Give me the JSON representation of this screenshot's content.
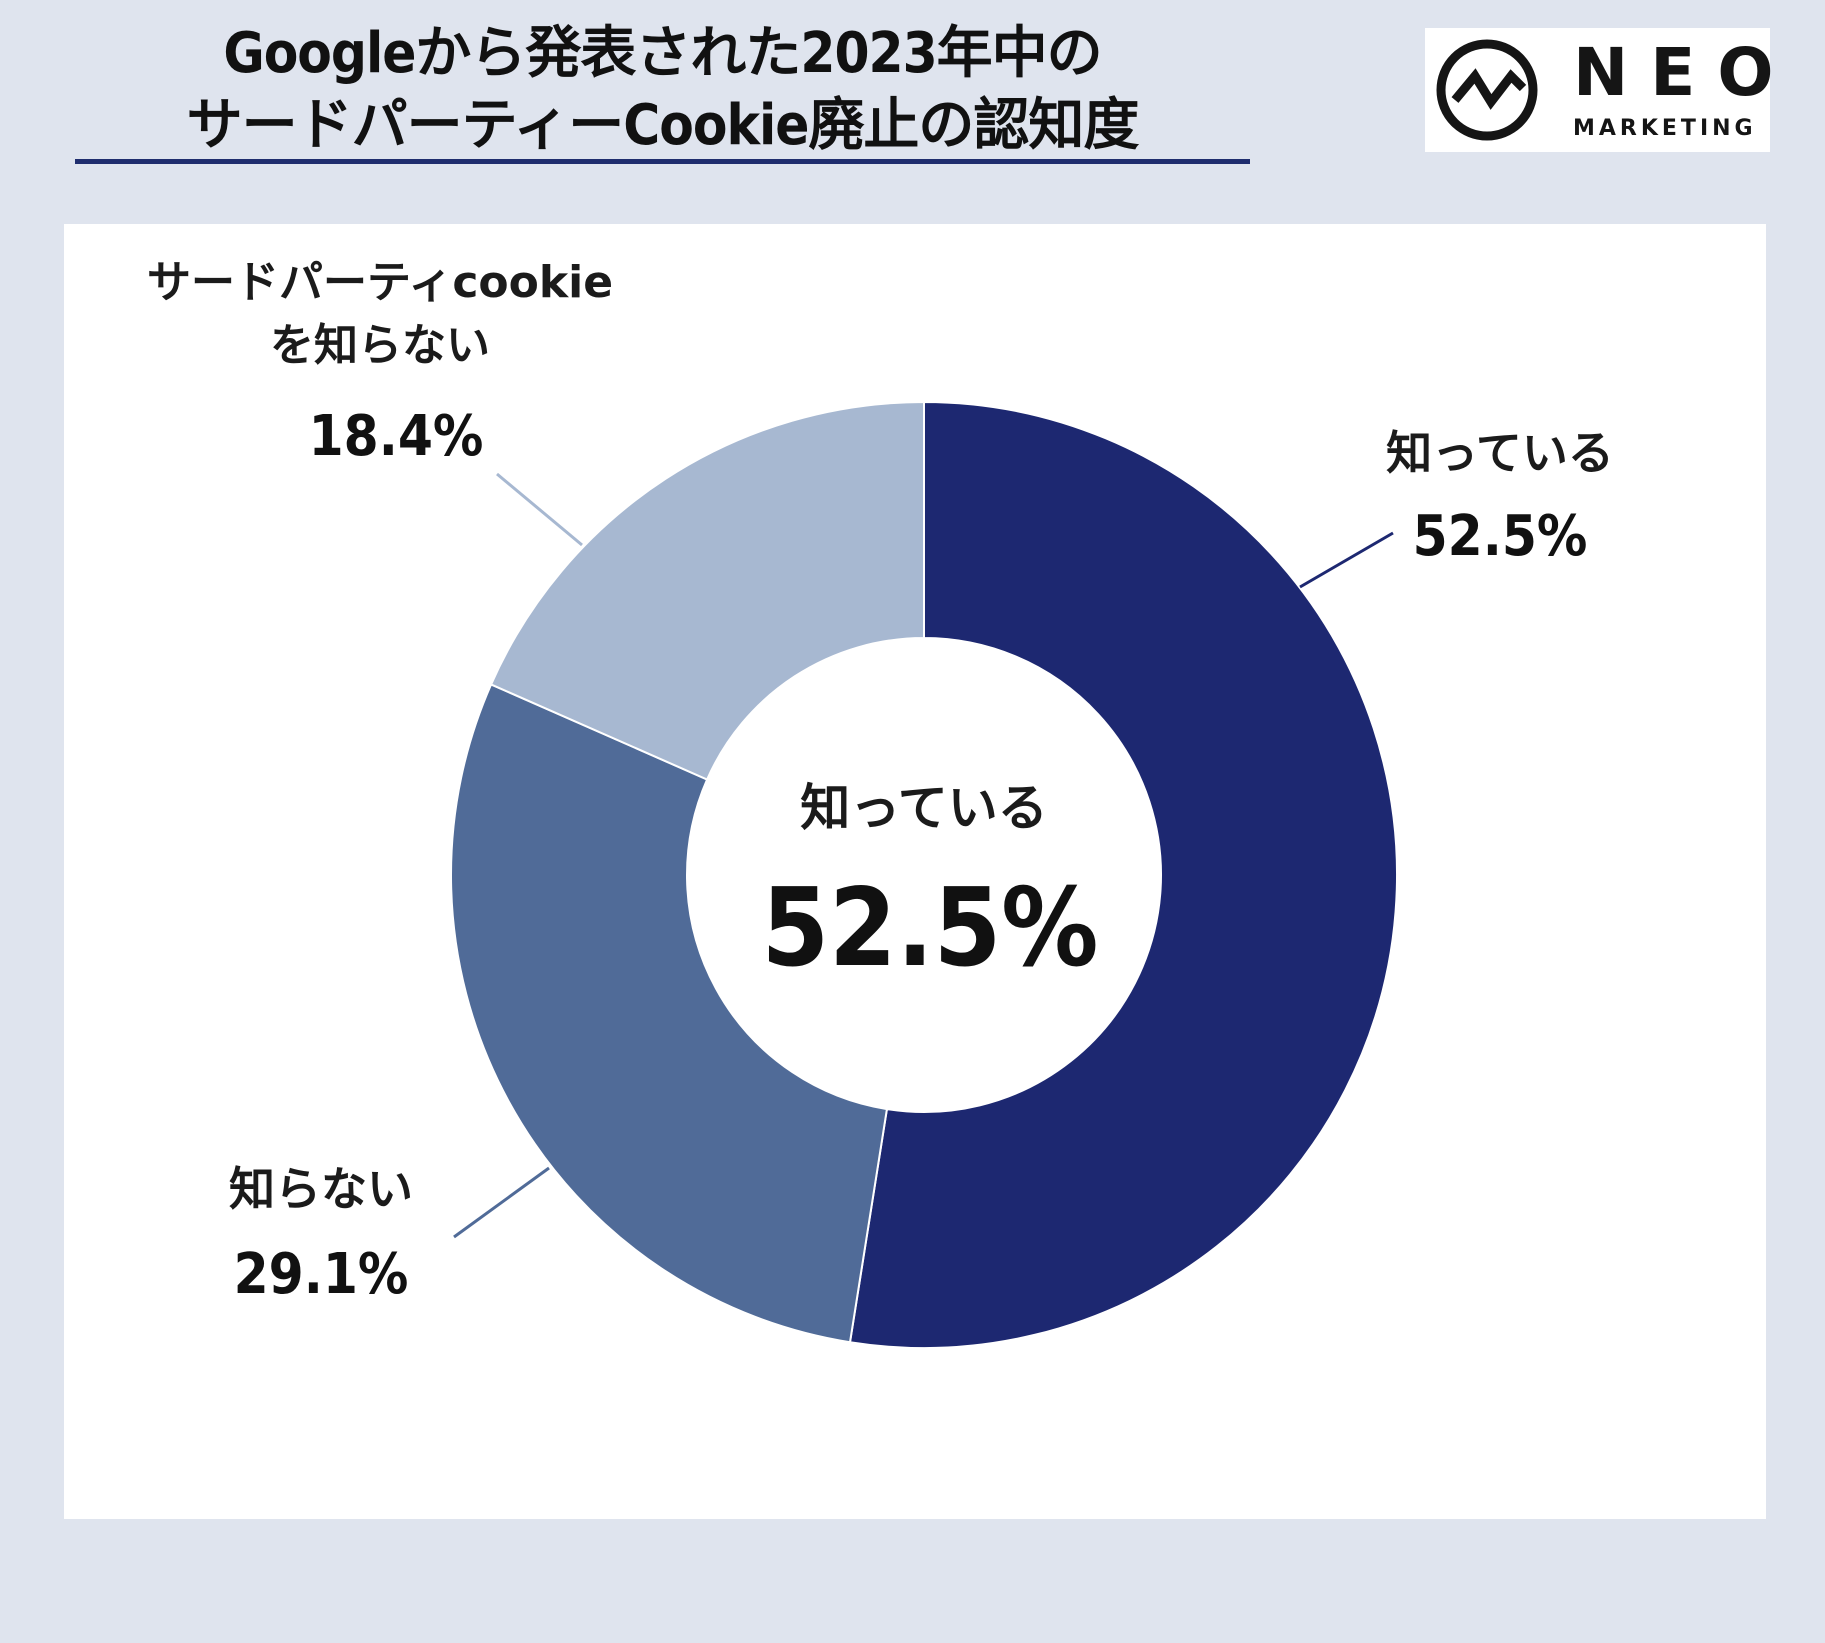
{
  "title": {
    "line1": "Googleから発表された2023年中の",
    "line2": "サードパーティーCookie廃止の認知度"
  },
  "logo": {
    "word": "NEO",
    "sub": "MARKETING"
  },
  "colors": {
    "background": "#dfe4ee",
    "panel": "#ffffff",
    "rule": "#1f2d6e",
    "slice_known": "#1d2871",
    "slice_unknown": "#506b98",
    "slice_no_cookie": "#a7b8d1"
  },
  "chart_data": {
    "type": "pie",
    "donut": true,
    "slices": [
      {
        "label": "知っている",
        "value": 52.5,
        "display": "52.5%",
        "color": "#1d2871"
      },
      {
        "label": "知らない",
        "value": 29.1,
        "display": "29.1%",
        "color": "#506b98"
      },
      {
        "label_line1": "サードパーティcookie",
        "label_line2": "を知らない",
        "value": 18.4,
        "display": "18.4%",
        "color": "#a7b8d1"
      }
    ],
    "center": {
      "label": "知っている",
      "value": "52.5%"
    }
  }
}
